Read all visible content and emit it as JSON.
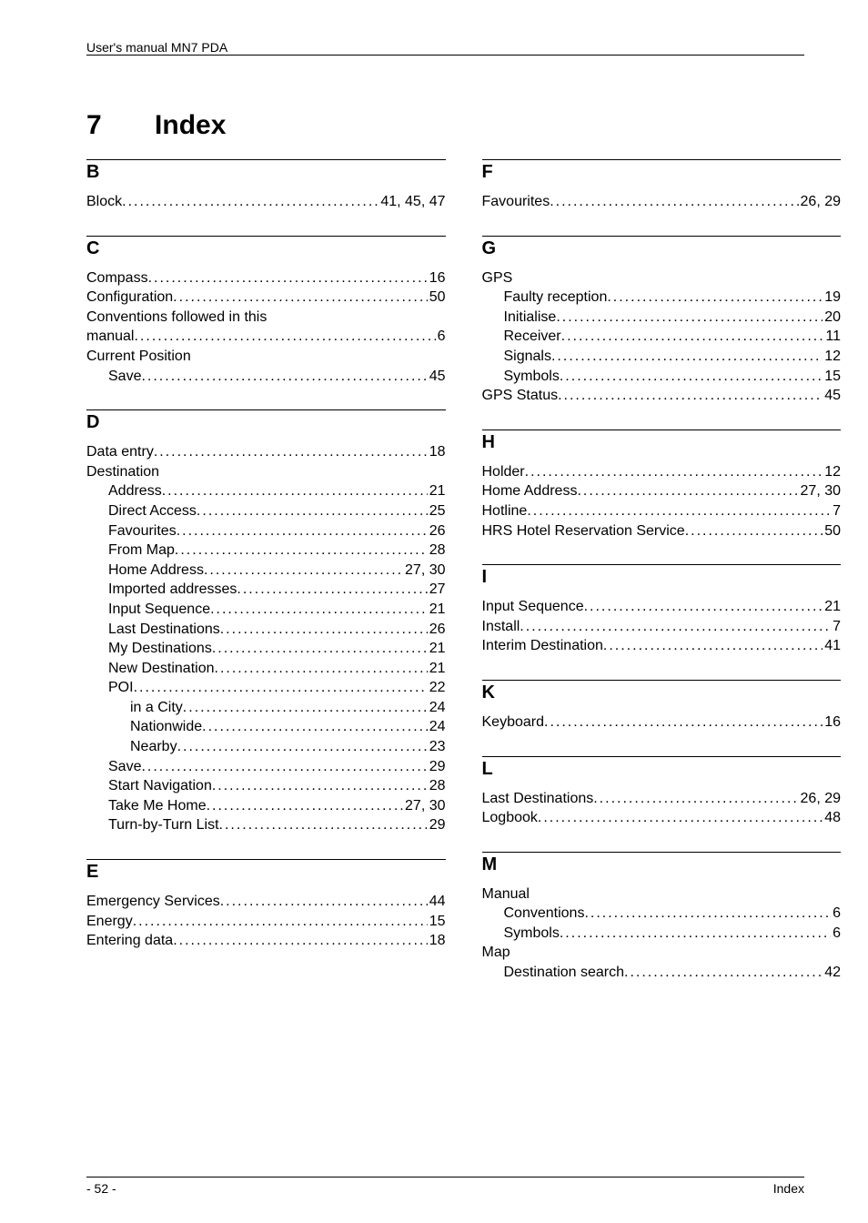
{
  "running_head": "User's manual MN7 PDA",
  "chapter": {
    "number": "7",
    "title": "Index"
  },
  "footer": {
    "left": "- 52 -",
    "right": "Index"
  },
  "left_column": [
    {
      "letter": "B",
      "entries": [
        {
          "label": "Block",
          "page": "41, 45, 47",
          "indent": 0
        }
      ]
    },
    {
      "letter": "C",
      "entries": [
        {
          "label": "Compass",
          "page": "16",
          "indent": 0
        },
        {
          "label": "Configuration",
          "page": "50",
          "indent": 0
        },
        {
          "label": "Conventions followed in this",
          "indent": 0,
          "nopage": true
        },
        {
          "label": "manual",
          "page": "6",
          "indent": 0
        },
        {
          "label": "Current Position",
          "indent": 0,
          "nopage": true
        },
        {
          "label": "Save",
          "page": "45",
          "indent": 1
        }
      ]
    },
    {
      "letter": "D",
      "entries": [
        {
          "label": "Data entry",
          "page": "18",
          "indent": 0
        },
        {
          "label": "Destination",
          "indent": 0,
          "nopage": true
        },
        {
          "label": "Address",
          "page": "21",
          "indent": 1
        },
        {
          "label": "Direct Access",
          "page": "25",
          "indent": 1
        },
        {
          "label": "Favourites",
          "page": "26",
          "indent": 1
        },
        {
          "label": "From Map",
          "page": "28",
          "indent": 1
        },
        {
          "label": "Home Address",
          "page": "27, 30",
          "indent": 1
        },
        {
          "label": "Imported addresses",
          "page": "27",
          "indent": 1
        },
        {
          "label": "Input Sequence",
          "page": "21",
          "indent": 1
        },
        {
          "label": "Last Destinations",
          "page": "26",
          "indent": 1
        },
        {
          "label": "My Destinations",
          "page": "21",
          "indent": 1
        },
        {
          "label": "New Destination",
          "page": "21",
          "indent": 1
        },
        {
          "label": "POI",
          "page": "22",
          "indent": 1
        },
        {
          "label": "in a City",
          "page": "24",
          "indent": 2
        },
        {
          "label": "Nationwide",
          "page": "24",
          "indent": 2
        },
        {
          "label": "Nearby",
          "page": "23",
          "indent": 2
        },
        {
          "label": "Save",
          "page": "29",
          "indent": 1
        },
        {
          "label": "Start Navigation",
          "page": "28",
          "indent": 1
        },
        {
          "label": "Take Me Home",
          "page": "27, 30",
          "indent": 1
        },
        {
          "label": "Turn-by-Turn List",
          "page": "29",
          "indent": 1
        }
      ]
    },
    {
      "letter": "E",
      "entries": [
        {
          "label": "Emergency Services",
          "page": "44",
          "indent": 0
        },
        {
          "label": "Energy",
          "page": "15",
          "indent": 0
        },
        {
          "label": "Entering data",
          "page": "18",
          "indent": 0
        }
      ]
    }
  ],
  "right_column": [
    {
      "letter": "F",
      "entries": [
        {
          "label": "Favourites",
          "page": "26, 29",
          "indent": 0
        }
      ]
    },
    {
      "letter": "G",
      "entries": [
        {
          "label": "GPS",
          "indent": 0,
          "nopage": true
        },
        {
          "label": "Faulty reception",
          "page": "19",
          "indent": 1
        },
        {
          "label": "Initialise",
          "page": "20",
          "indent": 1
        },
        {
          "label": "Receiver",
          "page": "11",
          "indent": 1
        },
        {
          "label": "Signals",
          "page": "12",
          "indent": 1
        },
        {
          "label": "Symbols",
          "page": "15",
          "indent": 1
        },
        {
          "label": "GPS Status",
          "page": "45",
          "indent": 0
        }
      ]
    },
    {
      "letter": "H",
      "entries": [
        {
          "label": "Holder",
          "page": "12",
          "indent": 0
        },
        {
          "label": "Home Address",
          "page": "27, 30",
          "indent": 0
        },
        {
          "label": "Hotline",
          "page": "7",
          "indent": 0
        },
        {
          "label": "HRS Hotel Reservation Service",
          "page": "50",
          "indent": 0
        }
      ]
    },
    {
      "letter": "I",
      "entries": [
        {
          "label": "Input Sequence",
          "page": "21",
          "indent": 0
        },
        {
          "label": "Install",
          "page": "7",
          "indent": 0
        },
        {
          "label": "Interim Destination",
          "page": "41",
          "indent": 0
        }
      ]
    },
    {
      "letter": "K",
      "entries": [
        {
          "label": "Keyboard",
          "page": "16",
          "indent": 0
        }
      ]
    },
    {
      "letter": "L",
      "entries": [
        {
          "label": "Last Destinations",
          "page": "26, 29",
          "indent": 0
        },
        {
          "label": "Logbook",
          "page": "48",
          "indent": 0
        }
      ]
    },
    {
      "letter": "M",
      "entries": [
        {
          "label": "Manual",
          "indent": 0,
          "nopage": true
        },
        {
          "label": "Conventions",
          "page": "6",
          "indent": 1
        },
        {
          "label": "Symbols",
          "page": "6",
          "indent": 1
        },
        {
          "label": "Map",
          "indent": 0,
          "nopage": true
        },
        {
          "label": "Destination search",
          "page": "42",
          "indent": 1
        }
      ]
    }
  ]
}
